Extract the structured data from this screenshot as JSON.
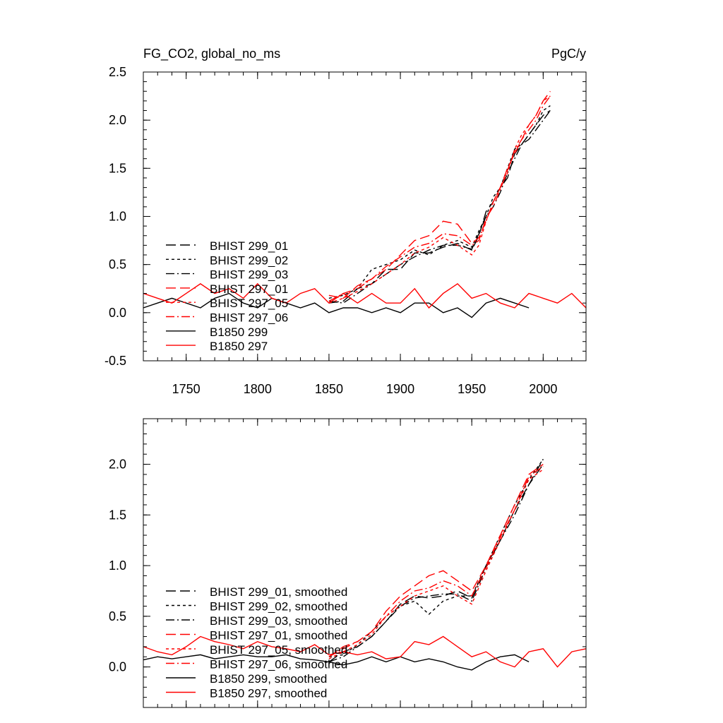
{
  "chart_data": [
    {
      "type": "line",
      "title": "FG_CO2, global_no_ms",
      "units": "PgC/y",
      "xlim": [
        1720,
        2030
      ],
      "ylim": [
        -0.5,
        2.5
      ],
      "xticks": [
        1750,
        1800,
        1850,
        1900,
        1950,
        2000
      ],
      "xtick_labels": [
        "1750",
        "1800",
        "1850",
        "1900",
        "1950",
        "2000"
      ],
      "yticks": [
        -0.5,
        0.0,
        0.5,
        1.0,
        1.5,
        2.0,
        2.5
      ],
      "ytick_labels": [
        "-0.5",
        "0.0",
        "0.5",
        "1.0",
        "1.5",
        "2.0",
        "2.5"
      ],
      "legend": "bottom-left",
      "series": [
        {
          "name": "BHIST 299_01",
          "color": "#000000",
          "dash": "long-dash",
          "x": [
            1850,
            1860,
            1870,
            1880,
            1890,
            1900,
            1910,
            1920,
            1930,
            1940,
            1950,
            1955,
            1960,
            1965,
            1970,
            1975,
            1980,
            1985,
            1990,
            1995,
            2000,
            2005
          ],
          "y": [
            0.1,
            0.12,
            0.25,
            0.3,
            0.45,
            0.45,
            0.62,
            0.62,
            0.68,
            0.72,
            0.65,
            0.8,
            1.05,
            1.15,
            1.3,
            1.4,
            1.65,
            1.75,
            1.85,
            1.95,
            2.05,
            2.1
          ]
        },
        {
          "name": "BHIST 299_02",
          "color": "#000000",
          "dash": "short-dash",
          "x": [
            1850,
            1860,
            1870,
            1880,
            1890,
            1900,
            1910,
            1920,
            1930,
            1940,
            1950,
            1955,
            1960,
            1965,
            1970,
            1975,
            1980,
            1985,
            1990,
            1995,
            2000,
            2005
          ],
          "y": [
            0.15,
            0.18,
            0.25,
            0.45,
            0.5,
            0.55,
            0.65,
            0.6,
            0.7,
            0.75,
            0.68,
            0.85,
            1.0,
            1.2,
            1.3,
            1.5,
            1.7,
            1.75,
            1.85,
            1.95,
            2.1,
            2.15
          ]
        },
        {
          "name": "BHIST 299_03",
          "color": "#000000",
          "dash": "dash-dot",
          "x": [
            1850,
            1860,
            1870,
            1880,
            1890,
            1900,
            1910,
            1920,
            1930,
            1940,
            1950,
            1955,
            1960,
            1965,
            1970,
            1975,
            1980,
            1985,
            1990,
            1995,
            2000,
            2005
          ],
          "y": [
            0.12,
            0.1,
            0.2,
            0.3,
            0.4,
            0.5,
            0.58,
            0.65,
            0.7,
            0.7,
            0.66,
            0.82,
            1.0,
            1.1,
            1.25,
            1.45,
            1.6,
            1.75,
            1.8,
            1.9,
            2.0,
            2.1
          ]
        },
        {
          "name": "BHIST 297_01",
          "color": "#ff0000",
          "dash": "long-dash",
          "x": [
            1850,
            1860,
            1870,
            1880,
            1890,
            1900,
            1910,
            1920,
            1930,
            1940,
            1950,
            1955,
            1960,
            1965,
            1970,
            1975,
            1980,
            1985,
            1990,
            1995,
            2000,
            2005
          ],
          "y": [
            0.18,
            0.15,
            0.28,
            0.35,
            0.45,
            0.6,
            0.75,
            0.8,
            0.95,
            0.92,
            0.72,
            0.78,
            0.95,
            1.15,
            1.3,
            1.5,
            1.65,
            1.8,
            1.95,
            2.05,
            2.2,
            2.3
          ]
        },
        {
          "name": "BHIST 297_05",
          "color": "#ff0000",
          "dash": "short-dash",
          "x": [
            1850,
            1860,
            1870,
            1880,
            1890,
            1900,
            1910,
            1920,
            1930,
            1940,
            1950,
            1955,
            1960,
            1965,
            1970,
            1975,
            1980,
            1985,
            1990,
            1995,
            2000,
            2005
          ],
          "y": [
            0.1,
            0.15,
            0.22,
            0.3,
            0.4,
            0.5,
            0.62,
            0.68,
            0.78,
            0.7,
            0.6,
            0.7,
            0.95,
            1.15,
            1.3,
            1.45,
            1.7,
            1.85,
            1.95,
            2.05,
            2.2,
            2.25
          ]
        },
        {
          "name": "BHIST 297_06",
          "color": "#ff0000",
          "dash": "dash-dot",
          "x": [
            1850,
            1860,
            1870,
            1880,
            1890,
            1900,
            1910,
            1920,
            1930,
            1940,
            1950,
            1955,
            1960,
            1965,
            1970,
            1975,
            1980,
            1985,
            1990,
            1995,
            2000,
            2005
          ],
          "y": [
            0.12,
            0.2,
            0.25,
            0.35,
            0.48,
            0.58,
            0.68,
            0.72,
            0.82,
            0.8,
            0.7,
            0.75,
            0.98,
            1.1,
            1.28,
            1.48,
            1.68,
            1.8,
            1.9,
            2.0,
            2.15,
            2.25
          ]
        },
        {
          "name": "B1850 299",
          "color": "#000000",
          "dash": "solid",
          "x": [
            1720,
            1730,
            1740,
            1750,
            1760,
            1770,
            1780,
            1790,
            1800,
            1810,
            1820,
            1830,
            1840,
            1850,
            1860,
            1870,
            1880,
            1890,
            1900,
            1910,
            1920,
            1930,
            1940,
            1950,
            1960,
            1970,
            1980,
            1990
          ],
          "y": [
            0.05,
            0.1,
            0.15,
            0.1,
            0.05,
            0.15,
            0.2,
            0.1,
            0.05,
            0.15,
            0.1,
            0.05,
            0.1,
            0.0,
            0.05,
            0.05,
            0.0,
            0.05,
            0.0,
            0.1,
            0.1,
            0.0,
            0.05,
            -0.05,
            0.1,
            0.15,
            0.1,
            0.05
          ]
        },
        {
          "name": "B1850 297",
          "color": "#ff0000",
          "dash": "solid",
          "x": [
            1720,
            1730,
            1740,
            1750,
            1760,
            1770,
            1780,
            1790,
            1800,
            1810,
            1820,
            1830,
            1840,
            1850,
            1860,
            1870,
            1880,
            1890,
            1900,
            1910,
            1920,
            1930,
            1940,
            1950,
            1960,
            1970,
            1980,
            1990,
            2000,
            2010,
            2020,
            2030
          ],
          "y": [
            0.2,
            0.15,
            0.1,
            0.2,
            0.3,
            0.2,
            0.25,
            0.15,
            0.3,
            0.15,
            0.1,
            0.2,
            0.25,
            0.1,
            0.2,
            0.1,
            0.2,
            0.1,
            0.1,
            0.25,
            0.05,
            0.2,
            0.3,
            0.15,
            0.2,
            0.1,
            0.05,
            0.2,
            0.15,
            0.1,
            0.2,
            0.05
          ]
        }
      ]
    },
    {
      "type": "line",
      "xlim": [
        1720,
        2030
      ],
      "ylim": [
        -0.4,
        2.45
      ],
      "xticks": [
        1750,
        1800,
        1850,
        1900,
        1950,
        2000
      ],
      "yticks": [
        0.0,
        0.5,
        1.0,
        1.5,
        2.0
      ],
      "ytick_labels": [
        "0.0",
        "0.5",
        "1.0",
        "1.5",
        "2.0"
      ],
      "legend": "bottom-left",
      "series": [
        {
          "name": "BHIST 299_01, smoothed",
          "color": "#000000",
          "dash": "long-dash",
          "x": [
            1850,
            1860,
            1870,
            1880,
            1890,
            1900,
            1910,
            1920,
            1930,
            1940,
            1950,
            1960,
            1970,
            1980,
            1990,
            2000
          ],
          "y": [
            0.05,
            0.15,
            0.2,
            0.3,
            0.45,
            0.62,
            0.7,
            0.68,
            0.7,
            0.75,
            0.68,
            1.0,
            1.25,
            1.55,
            1.8,
            2.05
          ]
        },
        {
          "name": "BHIST 299_02, smoothed",
          "color": "#000000",
          "dash": "short-dash",
          "x": [
            1850,
            1860,
            1870,
            1880,
            1890,
            1900,
            1910,
            1920,
            1930,
            1940,
            1950,
            1960,
            1970,
            1980,
            1990,
            2000
          ],
          "y": [
            0.1,
            0.12,
            0.22,
            0.35,
            0.5,
            0.6,
            0.65,
            0.52,
            0.65,
            0.7,
            0.7,
            1.0,
            1.3,
            1.6,
            1.85,
            2.05
          ]
        },
        {
          "name": "BHIST 299_03, smoothed",
          "color": "#000000",
          "dash": "dash-dot",
          "x": [
            1850,
            1860,
            1870,
            1880,
            1890,
            1900,
            1910,
            1920,
            1930,
            1940,
            1950,
            1960,
            1970,
            1980,
            1990,
            2000
          ],
          "y": [
            0.05,
            0.1,
            0.2,
            0.3,
            0.45,
            0.6,
            0.68,
            0.7,
            0.72,
            0.72,
            0.65,
            0.98,
            1.25,
            1.5,
            1.8,
            2.0
          ]
        },
        {
          "name": "BHIST 297_01, smoothed",
          "color": "#ff0000",
          "dash": "long-dash",
          "x": [
            1850,
            1860,
            1870,
            1880,
            1890,
            1900,
            1910,
            1920,
            1930,
            1940,
            1950,
            1960,
            1970,
            1980,
            1990,
            2000
          ],
          "y": [
            0.1,
            0.2,
            0.25,
            0.35,
            0.55,
            0.7,
            0.8,
            0.9,
            0.95,
            0.85,
            0.75,
            1.0,
            1.3,
            1.6,
            1.9,
            2.0
          ]
        },
        {
          "name": "BHIST 297_05, smoothed",
          "color": "#ff0000",
          "dash": "short-dash",
          "x": [
            1850,
            1860,
            1870,
            1880,
            1890,
            1900,
            1910,
            1920,
            1930,
            1940,
            1950,
            1960,
            1970,
            1980,
            1990,
            2000
          ],
          "y": [
            0.08,
            0.15,
            0.22,
            0.32,
            0.5,
            0.6,
            0.7,
            0.75,
            0.8,
            0.7,
            0.62,
            0.95,
            1.25,
            1.55,
            1.85,
            1.95
          ]
        },
        {
          "name": "BHIST 297_06, smoothed",
          "color": "#ff0000",
          "dash": "dash-dot",
          "x": [
            1850,
            1860,
            1870,
            1880,
            1890,
            1900,
            1910,
            1920,
            1930,
            1940,
            1950,
            1960,
            1970,
            1980,
            1990,
            2000
          ],
          "y": [
            0.1,
            0.18,
            0.25,
            0.35,
            0.5,
            0.65,
            0.75,
            0.78,
            0.85,
            0.8,
            0.7,
            0.98,
            1.28,
            1.55,
            1.88,
            1.98
          ]
        },
        {
          "name": "B1850 299, smoothed",
          "color": "#000000",
          "dash": "solid",
          "x": [
            1720,
            1730,
            1740,
            1750,
            1760,
            1770,
            1780,
            1790,
            1800,
            1810,
            1820,
            1830,
            1840,
            1850,
            1860,
            1870,
            1880,
            1890,
            1900,
            1910,
            1920,
            1930,
            1940,
            1950,
            1960,
            1970,
            1980,
            1990
          ],
          "y": [
            0.07,
            0.1,
            0.08,
            0.1,
            0.12,
            0.08,
            0.1,
            0.12,
            0.1,
            0.1,
            0.12,
            0.08,
            0.07,
            0.05,
            0.02,
            0.05,
            0.1,
            0.05,
            0.1,
            0.05,
            0.08,
            0.05,
            0.0,
            -0.03,
            0.05,
            0.1,
            0.12,
            0.05
          ]
        },
        {
          "name": "B1850 297, smoothed",
          "color": "#ff0000",
          "dash": "solid",
          "x": [
            1720,
            1730,
            1740,
            1750,
            1760,
            1770,
            1780,
            1790,
            1800,
            1810,
            1820,
            1830,
            1840,
            1850,
            1860,
            1870,
            1880,
            1890,
            1900,
            1910,
            1920,
            1930,
            1940,
            1950,
            1960,
            1970,
            1980,
            1990,
            2000,
            2010,
            2020,
            2030
          ],
          "y": [
            0.2,
            0.15,
            0.12,
            0.2,
            0.3,
            0.25,
            0.22,
            0.18,
            0.25,
            0.2,
            0.18,
            0.15,
            0.22,
            0.12,
            0.15,
            0.12,
            0.15,
            0.08,
            0.1,
            0.25,
            0.22,
            0.3,
            0.2,
            0.1,
            0.15,
            0.05,
            0.0,
            0.15,
            0.18,
            0.0,
            0.15,
            0.18
          ]
        }
      ]
    }
  ]
}
